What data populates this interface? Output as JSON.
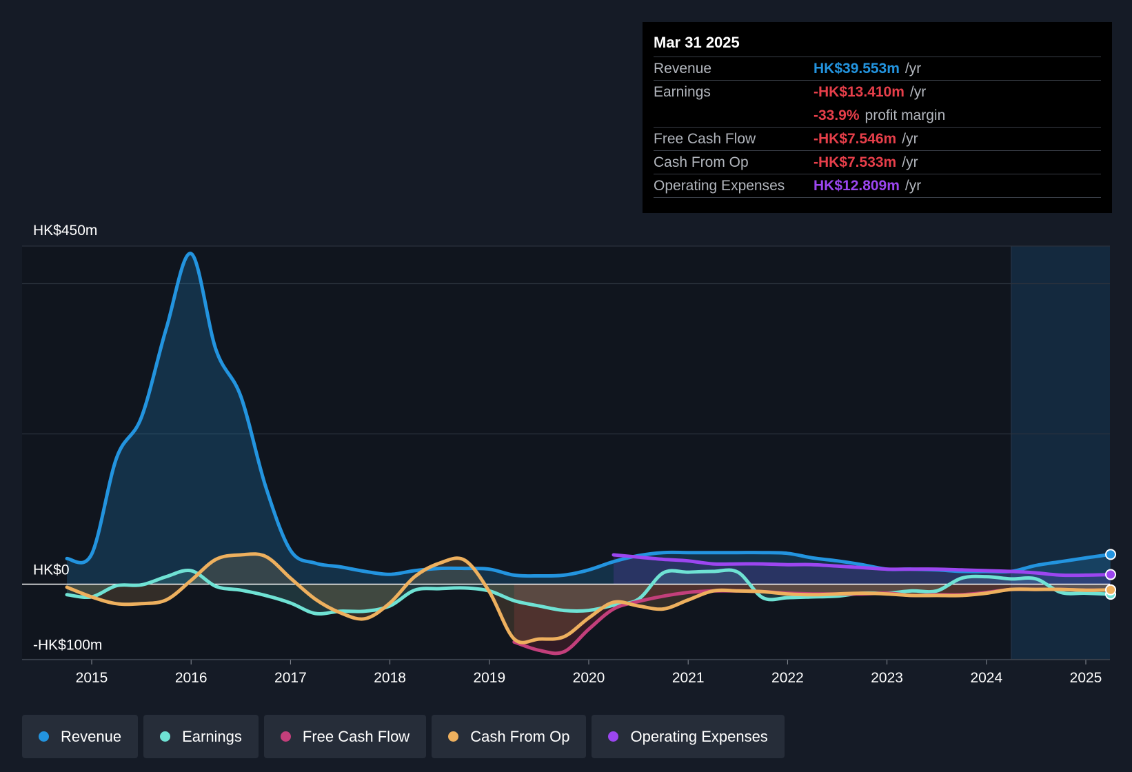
{
  "colors": {
    "background": "#151b26",
    "plot_background": "#10151e",
    "revenue": "#2394df",
    "earnings": "#6fe2d4",
    "free_cash_flow": "#c33f7b",
    "cash_from_op": "#eeb05e",
    "operating_expenses": "#9c46f0",
    "negative": "#e73f4a"
  },
  "tooltip": {
    "date": "Mar 31 2025",
    "rows": [
      {
        "label": "Revenue",
        "value": "HK$39.553m",
        "unit": "/yr",
        "color": "#2394df"
      },
      {
        "label": "Earnings",
        "value": "-HK$13.410m",
        "unit": "/yr",
        "color": "#e73f4a"
      },
      {
        "label": "",
        "value": "-33.9%",
        "unit": "profit margin",
        "color": "#e73f4a"
      },
      {
        "label": "Free Cash Flow",
        "value": "-HK$7.546m",
        "unit": "/yr",
        "color": "#e73f4a"
      },
      {
        "label": "Cash From Op",
        "value": "-HK$7.533m",
        "unit": "/yr",
        "color": "#e73f4a"
      },
      {
        "label": "Operating Expenses",
        "value": "HK$12.809m",
        "unit": "/yr",
        "color": "#9c46f0"
      }
    ]
  },
  "legend": [
    {
      "label": "Revenue",
      "color": "#2394df"
    },
    {
      "label": "Earnings",
      "color": "#6fe2d4"
    },
    {
      "label": "Free Cash Flow",
      "color": "#c33f7b"
    },
    {
      "label": "Cash From Op",
      "color": "#eeb05e"
    },
    {
      "label": "Operating Expenses",
      "color": "#9c46f0"
    }
  ],
  "chart_data": {
    "type": "line",
    "title": "",
    "xlabel": "",
    "ylabel": "",
    "x_range": [
      2014.3,
      2025.25
    ],
    "ylim": [
      -100,
      450
    ],
    "y_tick_labels": [
      {
        "value": 450,
        "label": "HK$450m"
      },
      {
        "value": 0,
        "label": "HK$0"
      },
      {
        "value": -100,
        "label": "-HK$100m"
      }
    ],
    "x_ticks": [
      {
        "value": 2015,
        "label": "2015"
      },
      {
        "value": 2016,
        "label": "2016"
      },
      {
        "value": 2017,
        "label": "2017"
      },
      {
        "value": 2018,
        "label": "2018"
      },
      {
        "value": 2019,
        "label": "2019"
      },
      {
        "value": 2020,
        "label": "2020"
      },
      {
        "value": 2021,
        "label": "2021"
      },
      {
        "value": 2022,
        "label": "2022"
      },
      {
        "value": 2023,
        "label": "2023"
      },
      {
        "value": 2024,
        "label": "2024"
      },
      {
        "value": 2025,
        "label": "2025"
      }
    ],
    "gridlines": [
      450,
      400,
      200,
      0,
      -100
    ],
    "grid": true,
    "future_shade_start": 2024.25,
    "series": [
      {
        "name": "Revenue",
        "key": "revenue",
        "area": true,
        "points": [
          [
            2014.75,
            34
          ],
          [
            2015.0,
            40
          ],
          [
            2015.25,
            168
          ],
          [
            2015.5,
            222
          ],
          [
            2015.75,
            340
          ],
          [
            2016.0,
            440
          ],
          [
            2016.25,
            312
          ],
          [
            2016.5,
            250
          ],
          [
            2016.75,
            130
          ],
          [
            2017.0,
            45
          ],
          [
            2017.25,
            28
          ],
          [
            2017.5,
            23
          ],
          [
            2017.75,
            17
          ],
          [
            2018.0,
            13
          ],
          [
            2018.25,
            18
          ],
          [
            2018.5,
            21
          ],
          [
            2018.75,
            21
          ],
          [
            2019.0,
            20
          ],
          [
            2019.25,
            12
          ],
          [
            2019.5,
            11
          ],
          [
            2019.75,
            12
          ],
          [
            2020.0,
            19
          ],
          [
            2020.25,
            30
          ],
          [
            2020.5,
            38
          ],
          [
            2020.75,
            42
          ],
          [
            2021.0,
            42
          ],
          [
            2021.25,
            42
          ],
          [
            2021.5,
            42
          ],
          [
            2021.75,
            42
          ],
          [
            2022.0,
            41
          ],
          [
            2022.25,
            35
          ],
          [
            2022.5,
            31
          ],
          [
            2022.75,
            26
          ],
          [
            2023.0,
            20
          ],
          [
            2023.25,
            20
          ],
          [
            2023.5,
            19
          ],
          [
            2023.75,
            17
          ],
          [
            2024.0,
            17
          ],
          [
            2024.25,
            17
          ],
          [
            2024.5,
            25
          ],
          [
            2024.75,
            30
          ],
          [
            2025.0,
            35
          ],
          [
            2025.25,
            39.553
          ]
        ]
      },
      {
        "name": "Earnings",
        "key": "earnings",
        "area": true,
        "points": [
          [
            2014.75,
            -14
          ],
          [
            2015.0,
            -17
          ],
          [
            2015.25,
            -2
          ],
          [
            2015.5,
            -1
          ],
          [
            2015.75,
            10
          ],
          [
            2016.0,
            18
          ],
          [
            2016.25,
            -3
          ],
          [
            2016.5,
            -8
          ],
          [
            2016.75,
            -15
          ],
          [
            2017.0,
            -25
          ],
          [
            2017.25,
            -39
          ],
          [
            2017.5,
            -36
          ],
          [
            2017.75,
            -36
          ],
          [
            2018.0,
            -29
          ],
          [
            2018.25,
            -8
          ],
          [
            2018.5,
            -6
          ],
          [
            2018.75,
            -5
          ],
          [
            2019.0,
            -9
          ],
          [
            2019.25,
            -22
          ],
          [
            2019.5,
            -29
          ],
          [
            2019.75,
            -35
          ],
          [
            2020.0,
            -35
          ],
          [
            2020.25,
            -28
          ],
          [
            2020.5,
            -20
          ],
          [
            2020.75,
            15
          ],
          [
            2021.0,
            16
          ],
          [
            2021.25,
            17
          ],
          [
            2021.5,
            16
          ],
          [
            2021.75,
            -18
          ],
          [
            2022.0,
            -18
          ],
          [
            2022.25,
            -17
          ],
          [
            2022.5,
            -16
          ],
          [
            2022.75,
            -12
          ],
          [
            2023.0,
            -12
          ],
          [
            2023.25,
            -9
          ],
          [
            2023.5,
            -9
          ],
          [
            2023.75,
            8
          ],
          [
            2024.0,
            10
          ],
          [
            2024.25,
            7
          ],
          [
            2024.5,
            7
          ],
          [
            2024.75,
            -11
          ],
          [
            2025.0,
            -12
          ],
          [
            2025.25,
            -13.41
          ]
        ]
      },
      {
        "name": "Free Cash Flow",
        "key": "free_cash_flow",
        "area": true,
        "points": [
          [
            2019.25,
            -77
          ],
          [
            2019.5,
            -88
          ],
          [
            2019.75,
            -90
          ],
          [
            2020.0,
            -60
          ],
          [
            2020.25,
            -33
          ],
          [
            2020.5,
            -23
          ],
          [
            2020.75,
            -16
          ],
          [
            2021.0,
            -11
          ],
          [
            2021.25,
            -9
          ],
          [
            2021.5,
            -9
          ],
          [
            2021.75,
            -10
          ],
          [
            2022.0,
            -12
          ],
          [
            2022.25,
            -13
          ],
          [
            2022.5,
            -13
          ],
          [
            2022.75,
            -13
          ],
          [
            2023.0,
            -12
          ],
          [
            2023.25,
            -15
          ],
          [
            2023.5,
            -14
          ],
          [
            2023.75,
            -14
          ],
          [
            2024.0,
            -11
          ],
          [
            2024.25,
            -7
          ],
          [
            2024.5,
            -7
          ],
          [
            2024.75,
            -7
          ],
          [
            2025.0,
            -8
          ],
          [
            2025.25,
            -7.546
          ]
        ]
      },
      {
        "name": "Cash From Op",
        "key": "cash_from_op",
        "area": true,
        "points": [
          [
            2014.75,
            -4
          ],
          [
            2015.0,
            -17
          ],
          [
            2015.25,
            -26
          ],
          [
            2015.5,
            -26
          ],
          [
            2015.75,
            -21
          ],
          [
            2016.0,
            5
          ],
          [
            2016.25,
            33
          ],
          [
            2016.5,
            39
          ],
          [
            2016.75,
            37
          ],
          [
            2017.0,
            8
          ],
          [
            2017.25,
            -20
          ],
          [
            2017.5,
            -38
          ],
          [
            2017.75,
            -46
          ],
          [
            2018.0,
            -25
          ],
          [
            2018.25,
            10
          ],
          [
            2018.5,
            28
          ],
          [
            2018.75,
            32
          ],
          [
            2019.0,
            -10
          ],
          [
            2019.25,
            -73
          ],
          [
            2019.5,
            -73
          ],
          [
            2019.75,
            -70
          ],
          [
            2020.0,
            -45
          ],
          [
            2020.25,
            -24
          ],
          [
            2020.5,
            -29
          ],
          [
            2020.75,
            -33
          ],
          [
            2021.0,
            -21
          ],
          [
            2021.25,
            -9
          ],
          [
            2021.5,
            -9
          ],
          [
            2021.75,
            -10
          ],
          [
            2022.0,
            -13
          ],
          [
            2022.25,
            -14
          ],
          [
            2022.5,
            -13
          ],
          [
            2022.75,
            -12
          ],
          [
            2023.0,
            -13
          ],
          [
            2023.25,
            -15
          ],
          [
            2023.5,
            -15
          ],
          [
            2023.75,
            -15
          ],
          [
            2024.0,
            -12
          ],
          [
            2024.25,
            -7
          ],
          [
            2024.5,
            -7
          ],
          [
            2024.75,
            -7
          ],
          [
            2025.0,
            -8
          ],
          [
            2025.25,
            -7.533
          ]
        ]
      },
      {
        "name": "Operating Expenses",
        "key": "operating_expenses",
        "area": true,
        "points": [
          [
            2020.25,
            39
          ],
          [
            2020.5,
            36
          ],
          [
            2020.75,
            33
          ],
          [
            2021.0,
            31
          ],
          [
            2021.25,
            27
          ],
          [
            2021.5,
            27
          ],
          [
            2021.75,
            27
          ],
          [
            2022.0,
            26
          ],
          [
            2022.25,
            26
          ],
          [
            2022.5,
            24
          ],
          [
            2022.75,
            22
          ],
          [
            2023.0,
            20
          ],
          [
            2023.25,
            20
          ],
          [
            2023.5,
            20
          ],
          [
            2023.75,
            19
          ],
          [
            2024.0,
            18
          ],
          [
            2024.25,
            17
          ],
          [
            2024.5,
            15
          ],
          [
            2024.75,
            12
          ],
          [
            2025.0,
            12
          ],
          [
            2025.25,
            12.809
          ]
        ]
      }
    ]
  }
}
